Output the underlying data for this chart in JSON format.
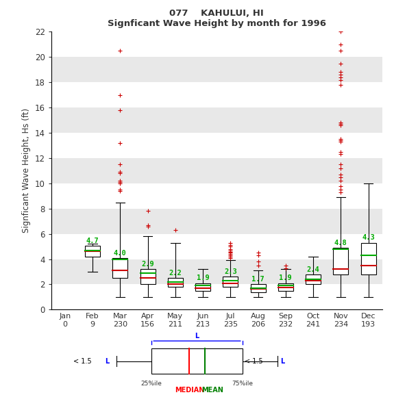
{
  "title1": "077    KAHULUI, HI",
  "title2": "Signficant Wave Height by month for 1996",
  "ylabel": "Signficant Wave Height, Hs (ft)",
  "months": [
    "Jan",
    "Feb",
    "Mar",
    "Apr",
    "May",
    "Jun",
    "Jul",
    "Aug",
    "Sep",
    "Oct",
    "Nov",
    "Dec"
  ],
  "counts": [
    0,
    9,
    230,
    156,
    211,
    213,
    235,
    206,
    232,
    241,
    234,
    193
  ],
  "ylim": [
    0,
    22
  ],
  "yticks": [
    0,
    2,
    4,
    6,
    8,
    10,
    12,
    14,
    16,
    18,
    20,
    22
  ],
  "boxes": {
    "Feb": {
      "q1": 4.2,
      "median": 4.65,
      "q3": 5.05,
      "mean": 4.7,
      "whislo": 3.0,
      "whishi": 5.2,
      "fliers": []
    },
    "Mar": {
      "q1": 2.5,
      "median": 3.1,
      "q3": 4.1,
      "mean": 4.0,
      "whislo": 1.0,
      "whishi": 8.5,
      "fliers": [
        20.5,
        17.0,
        15.8,
        13.2,
        11.5,
        10.9,
        10.8,
        10.2,
        10.1,
        10.0,
        9.5,
        9.4
      ]
    },
    "Apr": {
      "q1": 2.0,
      "median": 2.5,
      "q3": 3.2,
      "mean": 2.9,
      "whislo": 1.0,
      "whishi": 5.8,
      "fliers": [
        7.8,
        6.7,
        6.6
      ]
    },
    "May": {
      "q1": 1.8,
      "median": 2.0,
      "q3": 2.5,
      "mean": 2.2,
      "whislo": 1.0,
      "whishi": 5.3,
      "fliers": [
        6.3
      ]
    },
    "Jun": {
      "q1": 1.5,
      "median": 1.7,
      "q3": 2.1,
      "mean": 1.9,
      "whislo": 1.0,
      "whishi": 3.2,
      "fliers": []
    },
    "Jul": {
      "q1": 1.8,
      "median": 2.1,
      "q3": 2.6,
      "mean": 2.3,
      "whislo": 1.0,
      "whishi": 3.9,
      "fliers": [
        5.3,
        5.1,
        5.0,
        4.8,
        4.7,
        4.6,
        4.5,
        4.4,
        4.3,
        4.2,
        4.1
      ]
    },
    "Aug": {
      "q1": 1.4,
      "median": 1.65,
      "q3": 2.0,
      "mean": 1.7,
      "whislo": 1.0,
      "whishi": 3.1,
      "fliers": [
        4.5,
        4.3,
        3.8,
        3.5
      ]
    },
    "Sep": {
      "q1": 1.5,
      "median": 1.75,
      "q3": 2.1,
      "mean": 1.9,
      "whislo": 1.0,
      "whishi": 3.2,
      "fliers": [
        3.5,
        3.3
      ]
    },
    "Oct": {
      "q1": 2.0,
      "median": 2.3,
      "q3": 2.8,
      "mean": 2.4,
      "whislo": 1.0,
      "whishi": 4.2,
      "fliers": []
    },
    "Nov": {
      "q1": 2.8,
      "median": 3.2,
      "q3": 4.9,
      "mean": 4.8,
      "whislo": 1.0,
      "whishi": 8.9,
      "fliers": [
        22.0,
        21.0,
        20.5,
        19.5,
        18.8,
        18.6,
        18.4,
        18.2,
        17.8,
        14.8,
        14.7,
        14.6,
        13.5,
        13.4,
        13.3,
        12.5,
        12.3,
        11.5,
        11.2,
        10.7,
        10.5,
        10.2,
        9.8,
        9.5,
        9.3
      ]
    },
    "Dec": {
      "q1": 2.8,
      "median": 3.5,
      "q3": 5.3,
      "mean": 4.3,
      "whislo": 1.0,
      "whishi": 10.0,
      "fliers": []
    }
  },
  "mean_color": "#00aa00",
  "median_color": "#cc0000",
  "flier_color": "#cc0000",
  "stripe_color": "#e8e8e8",
  "white_color": "#ffffff"
}
